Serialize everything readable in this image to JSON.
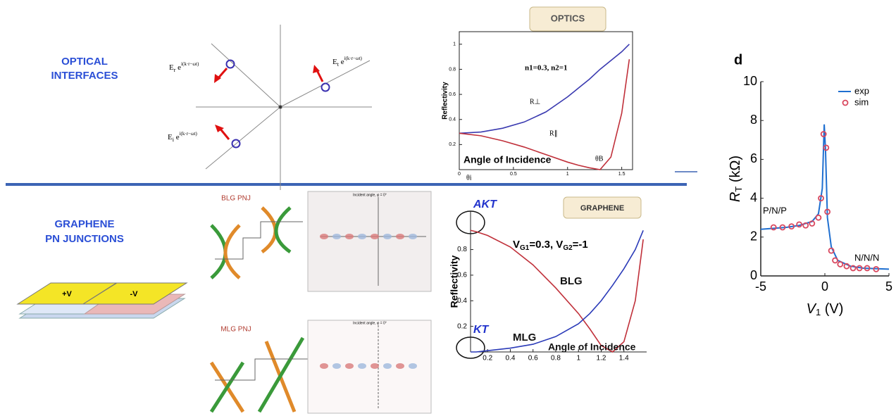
{
  "labels": {
    "optical": [
      "OPTICAL",
      "INTERFACES"
    ],
    "graphene": [
      "GRAPHENE",
      "PN JUNCTIONS"
    ]
  },
  "diagram": {
    "reflected": [
      "E",
      "r",
      " e",
      "i(k·r−ωt)"
    ],
    "transmitted": [
      "E",
      "t",
      " e",
      "i(k·r−ωt)"
    ],
    "incident": [
      "E",
      "i",
      " e",
      "i(k·r−ωt)"
    ]
  },
  "device": {
    "left": "+V",
    "right": "-V"
  },
  "bands": {
    "blg": "BLG PNJ",
    "mlg": "MLG PNJ"
  },
  "maps": {
    "titles": [
      "Incident angle, φ = 0°",
      "Incident angle, φ = 0°"
    ]
  },
  "chart_data": [
    {
      "type": "line",
      "tag": "OPTICS",
      "y_label": "Reflectivity",
      "annotations": [
        "n1=0.3, n2=1",
        "Angle of Incidence",
        "θB",
        "θi"
      ],
      "x": [
        0,
        0.2,
        0.4,
        0.6,
        0.8,
        1.0,
        1.1,
        1.2,
        1.3,
        1.4,
        1.5,
        1.57
      ],
      "series": [
        {
          "name": "R⊥",
          "color": "#3a3ab0",
          "values": [
            0.29,
            0.3,
            0.33,
            0.38,
            0.46,
            0.58,
            0.65,
            0.72,
            0.8,
            0.87,
            0.94,
            1.0
          ]
        },
        {
          "name": "R∥",
          "color": "#c0303a",
          "values": [
            0.29,
            0.27,
            0.23,
            0.18,
            0.12,
            0.06,
            0.035,
            0.015,
            0.0,
            0.1,
            0.45,
            0.88
          ]
        }
      ],
      "xlim": [
        0,
        1.6
      ],
      "ylim": [
        0,
        1.1
      ],
      "xticks": [
        0,
        0.5,
        1,
        1.5
      ],
      "yticks": [
        0.2,
        0.4,
        0.6,
        0.8,
        1
      ]
    },
    {
      "type": "line",
      "tag": "GRAPHENE",
      "y_label": "Reflectivity",
      "condition": [
        "V",
        "G1",
        "=0.3, V",
        "G2",
        "=-1"
      ],
      "annotations": [
        "AKT",
        "KT",
        "BLG",
        "MLG",
        "Angle of Incidence"
      ],
      "x": [
        0.05,
        0.1,
        0.2,
        0.4,
        0.6,
        0.8,
        1.0,
        1.1,
        1.2,
        1.3,
        1.4,
        1.5,
        1.57
      ],
      "series": [
        {
          "name": "BLG",
          "color": "#c0303a",
          "values": [
            0.95,
            0.94,
            0.91,
            0.82,
            0.68,
            0.5,
            0.3,
            0.18,
            0.05,
            0.0,
            0.08,
            0.4,
            0.88
          ]
        },
        {
          "name": "MLG",
          "color": "#2a3ab8",
          "values": [
            0.0,
            0.0,
            0.01,
            0.03,
            0.06,
            0.12,
            0.22,
            0.3,
            0.4,
            0.52,
            0.65,
            0.8,
            0.95
          ]
        }
      ],
      "xlim": [
        0.05,
        1.6
      ],
      "ylim": [
        0,
        1.1
      ],
      "xticks": [
        0.2,
        0.4,
        0.6,
        0.8,
        1,
        1.2,
        1.4
      ],
      "yticks": [
        0.2,
        0.4,
        0.6,
        0.8
      ]
    },
    {
      "type": "line",
      "panel": "d",
      "y_label": [
        "R",
        "T",
        " (kΩ)"
      ],
      "x_label": [
        "V",
        "1",
        " (V)"
      ],
      "annotations": [
        "P/N/P",
        "N/N/N"
      ],
      "series": [
        {
          "name": "exp",
          "color": "#1f6fd0",
          "mode": "line",
          "x": [
            -5,
            -4,
            -3,
            -2,
            -1,
            -0.5,
            -0.2,
            -0.05,
            0.05,
            0.2,
            0.5,
            1,
            2,
            3,
            5
          ],
          "values": [
            2.4,
            2.45,
            2.5,
            2.6,
            2.8,
            3.2,
            4.5,
            7.8,
            6.5,
            3.0,
            1.5,
            0.8,
            0.5,
            0.4,
            0.35
          ]
        },
        {
          "name": "sim",
          "color": "#d9475e",
          "mode": "markers",
          "x": [
            -4,
            -3.3,
            -2.6,
            -2,
            -1.5,
            -1,
            -0.5,
            -0.3,
            -0.1,
            0.1,
            0.2,
            0.5,
            0.8,
            1.2,
            1.7,
            2.2,
            2.7,
            3.3,
            4
          ],
          "values": [
            2.5,
            2.5,
            2.55,
            2.65,
            2.6,
            2.7,
            3.0,
            4.0,
            7.3,
            6.6,
            3.3,
            1.3,
            0.8,
            0.6,
            0.5,
            0.4,
            0.4,
            0.4,
            0.35
          ]
        }
      ],
      "xlim": [
        -5,
        5
      ],
      "ylim": [
        0,
        10
      ],
      "xticks": [
        -5,
        0,
        5
      ],
      "yticks": [
        0,
        2,
        4,
        6,
        8,
        10
      ]
    }
  ]
}
